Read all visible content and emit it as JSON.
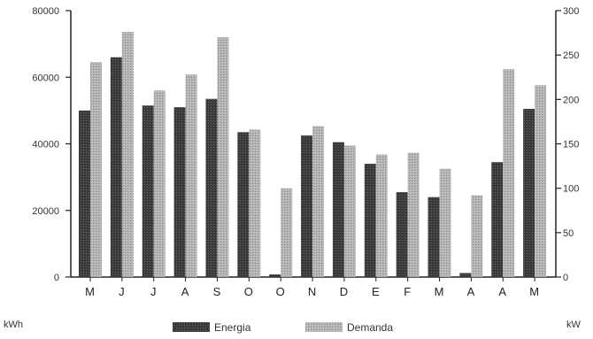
{
  "chart_data": {
    "type": "bar",
    "categories": [
      "M",
      "J",
      "J",
      "A",
      "S",
      "O",
      "O",
      "N",
      "D",
      "E",
      "F",
      "M",
      "A",
      "A",
      "M"
    ],
    "series": [
      {
        "name": "Energia",
        "axis": "left",
        "values": [
          50000,
          66000,
          51500,
          51000,
          53500,
          43500,
          800,
          42500,
          40500,
          34000,
          25500,
          24000,
          1200,
          34500,
          50500
        ],
        "color": "#3c3c3c"
      },
      {
        "name": "Demanda",
        "axis": "right",
        "values": [
          242,
          276,
          210,
          228,
          270,
          166,
          100,
          170,
          148,
          138,
          140,
          122,
          92,
          234,
          216
        ],
        "color": "#a9a9a9"
      }
    ],
    "y_left": {
      "label": "kWh",
      "ylim": [
        0,
        80000
      ],
      "ticks": [
        0,
        20000,
        40000,
        60000,
        80000
      ],
      "tick_labels": [
        "0",
        "20000",
        "40000",
        "60000",
        "80000"
      ]
    },
    "y_right": {
      "label": "kW",
      "ylim": [
        0,
        300
      ],
      "ticks": [
        0,
        50,
        100,
        150,
        200,
        250,
        300
      ],
      "tick_labels": [
        "0",
        "50",
        "100",
        "150",
        "200",
        "250",
        "300"
      ]
    },
    "legend": {
      "placement": "bottom-center"
    },
    "grid": false
  }
}
